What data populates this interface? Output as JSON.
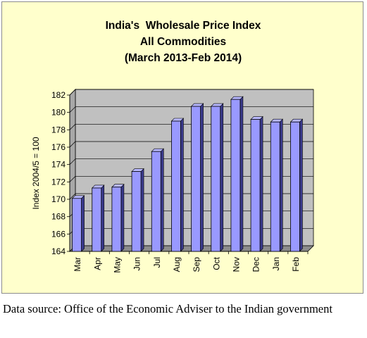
{
  "chart_data": {
    "type": "bar",
    "title_lines": [
      "India's  Wholesale Price Index",
      "All Commodities",
      "(March 2013-Feb 2014)"
    ],
    "xlabel": "",
    "ylabel": "Index 2004/5 = 100",
    "categories": [
      "Mar",
      "Apr",
      "May",
      "Jun",
      "Jul",
      "Aug",
      "Sep",
      "Oct",
      "Nov",
      "Dec",
      "Jan",
      "Feb"
    ],
    "values": [
      170.1,
      171.3,
      171.4,
      173.2,
      175.5,
      179.0,
      180.7,
      180.7,
      181.5,
      179.2,
      178.9,
      178.9
    ],
    "ylim": [
      164,
      182
    ],
    "yticks": [
      "164",
      "166",
      "168",
      "170",
      "172",
      "174",
      "176",
      "178",
      "180",
      "182"
    ],
    "grid": true,
    "legend": "none",
    "colors": {
      "bar_front": "#9999ff",
      "bar_side": "#3a3a8c",
      "bar_top": "#b8b8ff",
      "plot_back": "#c0c0c0",
      "plot_floor": "#8c8c8c",
      "frame_bg": "#ffffcc"
    }
  },
  "caption": "Data source: Office of the Economic Adviser to the Indian government"
}
